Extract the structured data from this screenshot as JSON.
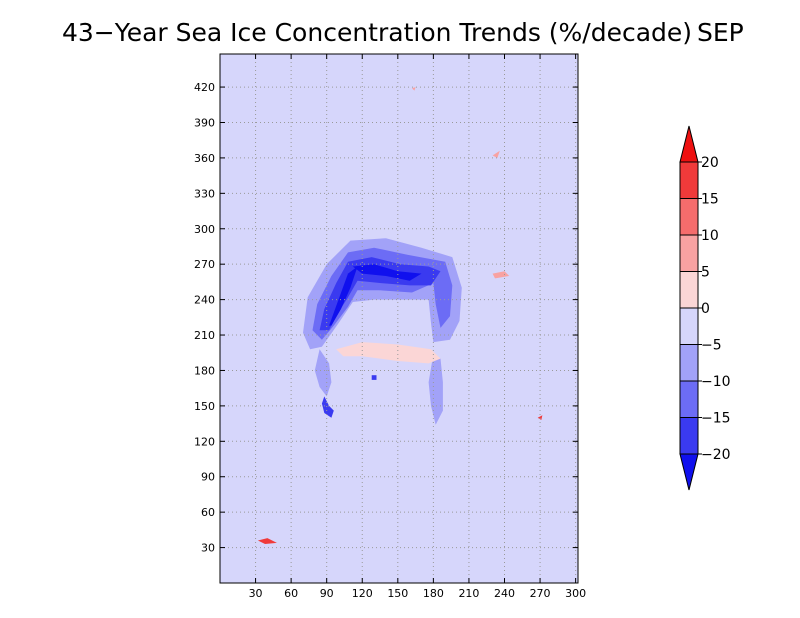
{
  "chart_data": {
    "type": "heatmap",
    "title": "43−Year Sea Ice Concentration Trends (%/decade)",
    "month": "SEP",
    "xlabel": "",
    "ylabel": "",
    "xlim": [
      0,
      302
    ],
    "ylim": [
      0,
      448
    ],
    "x_ticks": [
      30,
      60,
      90,
      120,
      150,
      180,
      210,
      240,
      270,
      300
    ],
    "y_ticks": [
      30,
      60,
      90,
      120,
      150,
      180,
      210,
      240,
      270,
      300,
      330,
      360,
      390,
      420
    ],
    "grid": true,
    "background_value_bin": "-5 to 0",
    "colorbar": {
      "orientation": "vertical",
      "placement": "right",
      "extend": "both",
      "levels": [
        -20,
        -15,
        -10,
        -5,
        0,
        5,
        10,
        15,
        20
      ],
      "level_labels": [
        "−20",
        "−15",
        "−10",
        "−5",
        "0",
        "5",
        "10",
        "15",
        "20"
      ],
      "colors": [
        "#1010ee",
        "#3a3af0",
        "#6c6cf5",
        "#a2a2f8",
        "#d6d6fb",
        "#fbd6d6",
        "#f8a2a2",
        "#f56c6c",
        "#f03a3a",
        "#ee1010"
      ]
    },
    "regions": [
      {
        "name": "strong loss arc west",
        "bin": "< -20",
        "polygon": [
          [
            92,
            218
          ],
          [
            100,
            240
          ],
          [
            108,
            262
          ],
          [
            116,
            268
          ],
          [
            110,
            250
          ],
          [
            102,
            232
          ],
          [
            94,
            218
          ]
        ]
      },
      {
        "name": "strong loss arc north",
        "bin": "< -20",
        "polygon": [
          [
            112,
            268
          ],
          [
            130,
            270
          ],
          [
            150,
            264
          ],
          [
            170,
            262
          ],
          [
            160,
            256
          ],
          [
            140,
            260
          ],
          [
            120,
            262
          ]
        ]
      },
      {
        "name": "loss ring",
        "bin": "-20 to -15",
        "polygon": [
          [
            84,
            214
          ],
          [
            88,
            232
          ],
          [
            98,
            254
          ],
          [
            108,
            272
          ],
          [
            128,
            276
          ],
          [
            152,
            270
          ],
          [
            176,
            268
          ],
          [
            186,
            264
          ],
          [
            178,
            252
          ],
          [
            160,
            252
          ],
          [
            136,
            254
          ],
          [
            116,
            256
          ],
          [
            108,
            242
          ],
          [
            98,
            226
          ],
          [
            92,
            214
          ]
        ]
      },
      {
        "name": "loss band",
        "bin": "-15 to -10",
        "polygon": [
          [
            78,
            214
          ],
          [
            82,
            236
          ],
          [
            94,
            260
          ],
          [
            108,
            280
          ],
          [
            130,
            284
          ],
          [
            158,
            278
          ],
          [
            190,
            272
          ],
          [
            196,
            252
          ],
          [
            194,
            226
          ],
          [
            186,
            216
          ],
          [
            182,
            236
          ],
          [
            180,
            254
          ],
          [
            162,
            246
          ],
          [
            134,
            248
          ],
          [
            116,
            248
          ],
          [
            108,
            234
          ],
          [
            96,
            218
          ],
          [
            86,
            206
          ]
        ]
      },
      {
        "name": "loss halo",
        "bin": "-10 to -5",
        "polygon": [
          [
            70,
            212
          ],
          [
            74,
            242
          ],
          [
            90,
            270
          ],
          [
            110,
            290
          ],
          [
            140,
            292
          ],
          [
            170,
            284
          ],
          [
            196,
            276
          ],
          [
            204,
            250
          ],
          [
            202,
            222
          ],
          [
            194,
            206
          ],
          [
            180,
            204
          ],
          [
            178,
            220
          ],
          [
            176,
            240
          ],
          [
            160,
            240
          ],
          [
            130,
            240
          ],
          [
            112,
            238
          ],
          [
            100,
            220
          ],
          [
            86,
            200
          ],
          [
            76,
            198
          ]
        ]
      },
      {
        "name": "central gain",
        "bin": "0 to 5",
        "polygon": [
          [
            98,
            198
          ],
          [
            120,
            204
          ],
          [
            150,
            202
          ],
          [
            178,
            198
          ],
          [
            186,
            190
          ],
          [
            176,
            186
          ],
          [
            150,
            188
          ],
          [
            120,
            192
          ],
          [
            104,
            192
          ]
        ]
      },
      {
        "name": "west lobe loss",
        "bin": "-10 to -5",
        "polygon": [
          [
            84,
            198
          ],
          [
            80,
            180
          ],
          [
            84,
            166
          ],
          [
            90,
            158
          ],
          [
            94,
            170
          ],
          [
            92,
            186
          ]
        ]
      },
      {
        "name": "west lobe core",
        "bin": "-20 to -15",
        "polygon": [
          [
            88,
            158
          ],
          [
            92,
            150
          ],
          [
            96,
            146
          ],
          [
            94,
            140
          ],
          [
            88,
            144
          ],
          [
            86,
            152
          ]
        ]
      },
      {
        "name": "east lobe loss",
        "bin": "-10 to -5",
        "polygon": [
          [
            180,
            194
          ],
          [
            176,
            170
          ],
          [
            178,
            150
          ],
          [
            182,
            134
          ],
          [
            188,
            146
          ],
          [
            188,
            170
          ],
          [
            186,
            190
          ]
        ]
      },
      {
        "name": "small loss patch",
        "bin": "-20 to -15",
        "polygon": [
          [
            128,
            176
          ],
          [
            132,
            176
          ],
          [
            132,
            172
          ],
          [
            128,
            172
          ]
        ]
      },
      {
        "name": "gain speck 1",
        "bin": "5 to 10",
        "polygon": [
          [
            230,
            262
          ],
          [
            240,
            264
          ],
          [
            244,
            260
          ],
          [
            232,
            258
          ]
        ]
      },
      {
        "name": "gain speck 2",
        "bin": "5 to 10",
        "polygon": [
          [
            230,
            362
          ],
          [
            236,
            366
          ],
          [
            234,
            360
          ]
        ]
      },
      {
        "name": "gain speck 3",
        "bin": "15 to 20",
        "polygon": [
          [
            32,
            36
          ],
          [
            40,
            38
          ],
          [
            48,
            34
          ],
          [
            38,
            33
          ]
        ]
      },
      {
        "name": "gain speck 4",
        "bin": "15 to 20",
        "polygon": [
          [
            268,
            140
          ],
          [
            272,
            142
          ],
          [
            271,
            138
          ]
        ]
      },
      {
        "name": "gain speck 5",
        "bin": "5 to 10",
        "polygon": [
          [
            162,
            419
          ],
          [
            165,
            420
          ],
          [
            164,
            417
          ]
        ]
      }
    ]
  }
}
